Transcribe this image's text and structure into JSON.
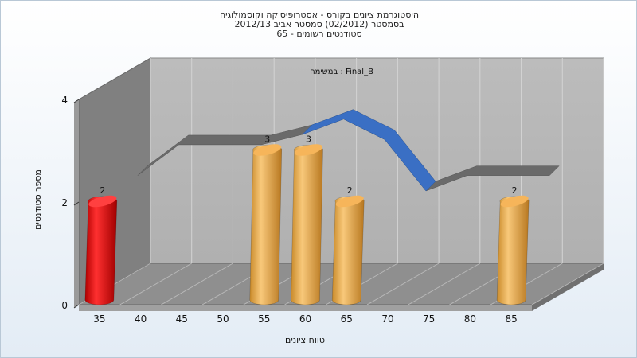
{
  "title": {
    "line1": "היסטוגרמת ציונים בקורס - אסטרופיסיקה וקוסמולוגיה",
    "line2": "בסמסטר  (02/2012)  סמסטר אביב 2012/13",
    "line3": "סטודנטים רשומים - 65"
  },
  "chart_data": {
    "type": "bar",
    "title": "היסטוגרמת ציונים בקורס - אסטרופיסיקה וקוסמולוגיה",
    "annotation": "במשימה : Final_B",
    "xlabel": "טווח ציונים",
    "ylabel": "מספר סטודנטים",
    "categories": [
      "35",
      "40",
      "45",
      "50",
      "55",
      "60",
      "65",
      "70",
      "75",
      "80",
      "85"
    ],
    "values": [
      2,
      0,
      0,
      0,
      3,
      3,
      2,
      0,
      0,
      0,
      2
    ],
    "bar_colors": [
      "#e01010",
      "#e0a040",
      "#e0a040",
      "#e0a040",
      "#e0a040",
      "#e0a040",
      "#e0a040",
      "#e0a040",
      "#e0a040",
      "#e0a040",
      "#e0a040"
    ],
    "ylim": [
      0,
      4
    ],
    "yticks": [
      "0",
      "2",
      "4"
    ],
    "grid": true,
    "trend_line": {
      "x": [
        35,
        40,
        45,
        50,
        55,
        60,
        65,
        70,
        75,
        80,
        85
      ],
      "y": [
        2.3,
        2.9,
        2.9,
        2.9,
        3.1,
        3.4,
        3.0,
        2.0,
        2.3,
        2.3,
        2.3
      ]
    }
  }
}
